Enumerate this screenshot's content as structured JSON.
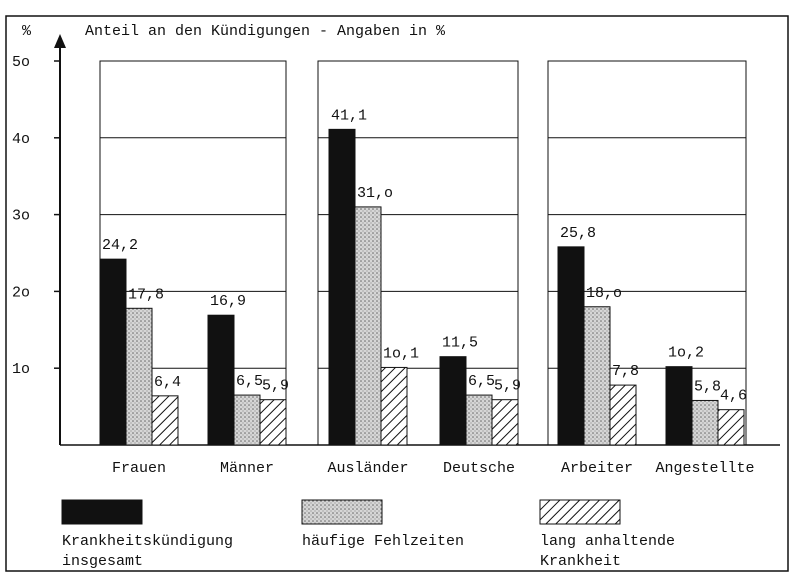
{
  "chart_data": {
    "type": "bar",
    "title": "Anteil an den Kündigungen - Angaben in %",
    "y_label": "%",
    "categories": [
      "Frauen",
      "Männer",
      "Ausländer",
      "Deutsche",
      "Arbeiter",
      "Angestellte"
    ],
    "series": [
      {
        "name": "Krankheitskündigung insgesamt",
        "color": "#111111",
        "fill_style": "solid",
        "values": [
          24.2,
          16.9,
          41.1,
          11.5,
          25.8,
          10.2
        ],
        "value_labels": [
          "24,2",
          "16,9",
          "41,1",
          "11,5",
          "25,8",
          "1o,2"
        ]
      },
      {
        "name": "häufige Fehlzeiten",
        "color": "#c8c8c8",
        "fill_style": "stipple",
        "values": [
          17.8,
          6.5,
          31.0,
          6.5,
          18.0,
          5.8
        ],
        "value_labels": [
          "17,8",
          "6,5",
          "31,o",
          "6,5",
          "18,o",
          "5,8"
        ]
      },
      {
        "name": "lang anhaltende Krankheit",
        "color": "#ffffff",
        "fill_style": "hatch",
        "values": [
          6.4,
          5.9,
          10.1,
          5.9,
          7.8,
          4.6
        ],
        "value_labels": [
          "6,4",
          "5,9",
          "1o,1",
          "5,9",
          "7,8",
          "4,6"
        ]
      }
    ],
    "ylim": [
      0,
      50
    ],
    "yticks": [
      {
        "value": 10,
        "label": "1o"
      },
      {
        "value": 20,
        "label": "2o"
      },
      {
        "value": 30,
        "label": "3o"
      },
      {
        "value": 40,
        "label": "4o"
      },
      {
        "value": 50,
        "label": "5o"
      }
    ],
    "grid": true
  }
}
